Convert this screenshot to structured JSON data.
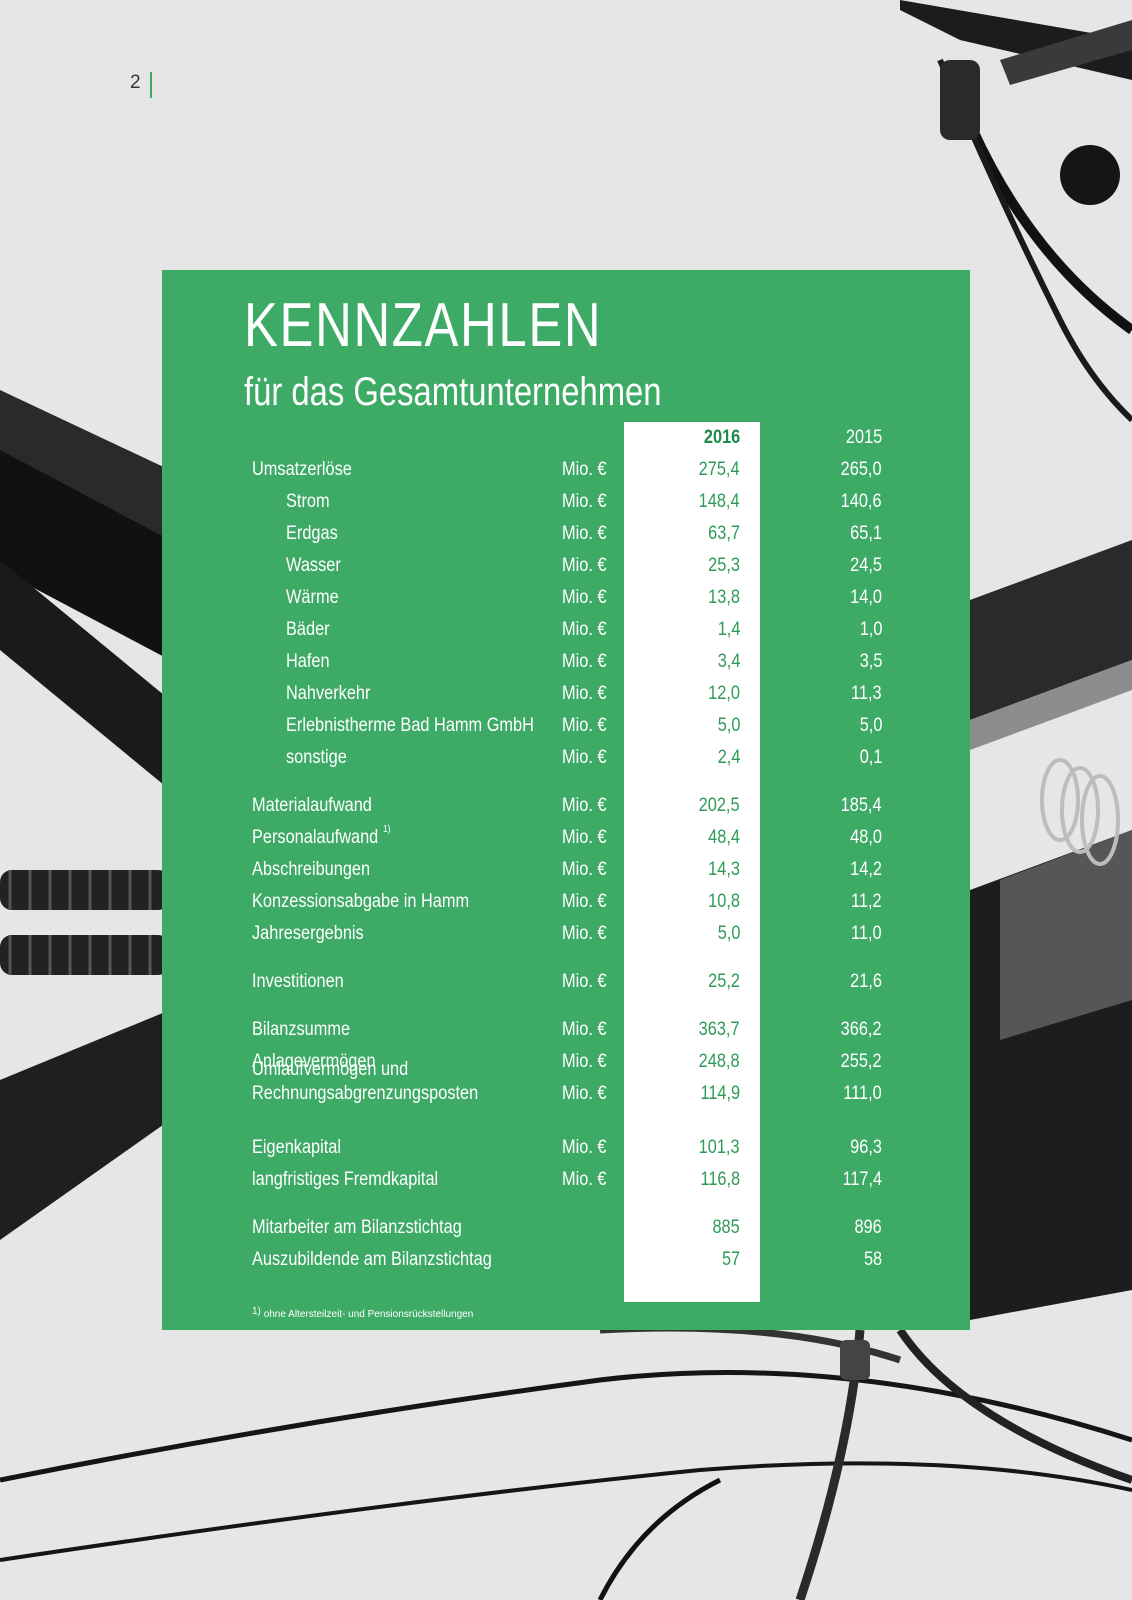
{
  "page": {
    "number": "2"
  },
  "header": {
    "title": "KENNZAHLEN",
    "subtitle": "für das Gesamtunternehmen"
  },
  "table": {
    "year_current": "2016",
    "year_previous": "2015",
    "rows": [
      {
        "label": "Umsatzerlöse",
        "unit": "Mio. €",
        "v2016": "275,4",
        "v2015": "265,0",
        "indent": false
      },
      {
        "label": "Strom",
        "unit": "Mio. €",
        "v2016": "148,4",
        "v2015": "140,6",
        "indent": true
      },
      {
        "label": "Erdgas",
        "unit": "Mio. €",
        "v2016": "63,7",
        "v2015": "65,1",
        "indent": true
      },
      {
        "label": "Wasser",
        "unit": "Mio. €",
        "v2016": "25,3",
        "v2015": "24,5",
        "indent": true
      },
      {
        "label": "Wärme",
        "unit": "Mio. €",
        "v2016": "13,8",
        "v2015": "14,0",
        "indent": true
      },
      {
        "label": "Bäder",
        "unit": "Mio. €",
        "v2016": "1,4",
        "v2015": "1,0",
        "indent": true
      },
      {
        "label": "Hafen",
        "unit": "Mio. €",
        "v2016": "3,4",
        "v2015": "3,5",
        "indent": true
      },
      {
        "label": "Nahverkehr",
        "unit": "Mio. €",
        "v2016": "12,0",
        "v2015": "11,3",
        "indent": true
      },
      {
        "label": "Erlebnistherme Bad Hamm GmbH",
        "unit": "Mio. €",
        "v2016": "5,0",
        "v2015": "5,0",
        "indent": true
      },
      {
        "label": "sonstige",
        "unit": "Mio. €",
        "v2016": "2,4",
        "v2015": "0,1",
        "indent": true
      },
      {
        "label": "Materialaufwand",
        "unit": "Mio. €",
        "v2016": "202,5",
        "v2015": "185,4",
        "indent": false
      },
      {
        "label": "Personalaufwand",
        "sup": "1)",
        "unit": "Mio. €",
        "v2016": "48,4",
        "v2015": "48,0",
        "indent": false
      },
      {
        "label": "Abschreibungen",
        "unit": "Mio. €",
        "v2016": "14,3",
        "v2015": "14,2",
        "indent": false
      },
      {
        "label": "Konzessionsabgabe in Hamm",
        "unit": "Mio. €",
        "v2016": "10,8",
        "v2015": "11,2",
        "indent": false
      },
      {
        "label": "Jahresergebnis",
        "unit": "Mio. €",
        "v2016": "5,0",
        "v2015": "11,0",
        "indent": false
      },
      {
        "label": "Investitionen",
        "unit": "Mio. €",
        "v2016": "25,2",
        "v2015": "21,6",
        "indent": false
      },
      {
        "label": "Bilanzsumme",
        "unit": "Mio. €",
        "v2016": "363,7",
        "v2015": "366,2",
        "indent": false
      },
      {
        "label": "Anlagevermögen",
        "unit": "Mio. €",
        "v2016": "248,8",
        "v2015": "255,2",
        "indent": false
      },
      {
        "label": "Umlaufvermögen und",
        "label2": "Rechnungsabgrenzungsposten",
        "unit": "Mio. €",
        "v2016": "114,9",
        "v2015": "111,0",
        "indent": false
      },
      {
        "label": "Eigenkapital",
        "unit": "Mio. €",
        "v2016": "101,3",
        "v2015": "96,3",
        "indent": false
      },
      {
        "label": "langfristiges Fremdkapital",
        "unit": "Mio. €",
        "v2016": "116,8",
        "v2015": "117,4",
        "indent": false
      },
      {
        "label": "Mitarbeiter am Bilanzstichtag",
        "unit": "",
        "v2016": "885",
        "v2015": "896",
        "indent": false
      },
      {
        "label": "Auszubildende am Bilanzstichtag",
        "unit": "",
        "v2016": "57",
        "v2015": "58",
        "indent": false
      }
    ]
  },
  "footnote": {
    "marker": "1)",
    "text": "ohne Altersteilzeit- und Pensionsrückstellungen"
  },
  "colors": {
    "panel": "#3daa66",
    "value_2016": "#2e9a55",
    "accent_bar": "#3daa66"
  }
}
